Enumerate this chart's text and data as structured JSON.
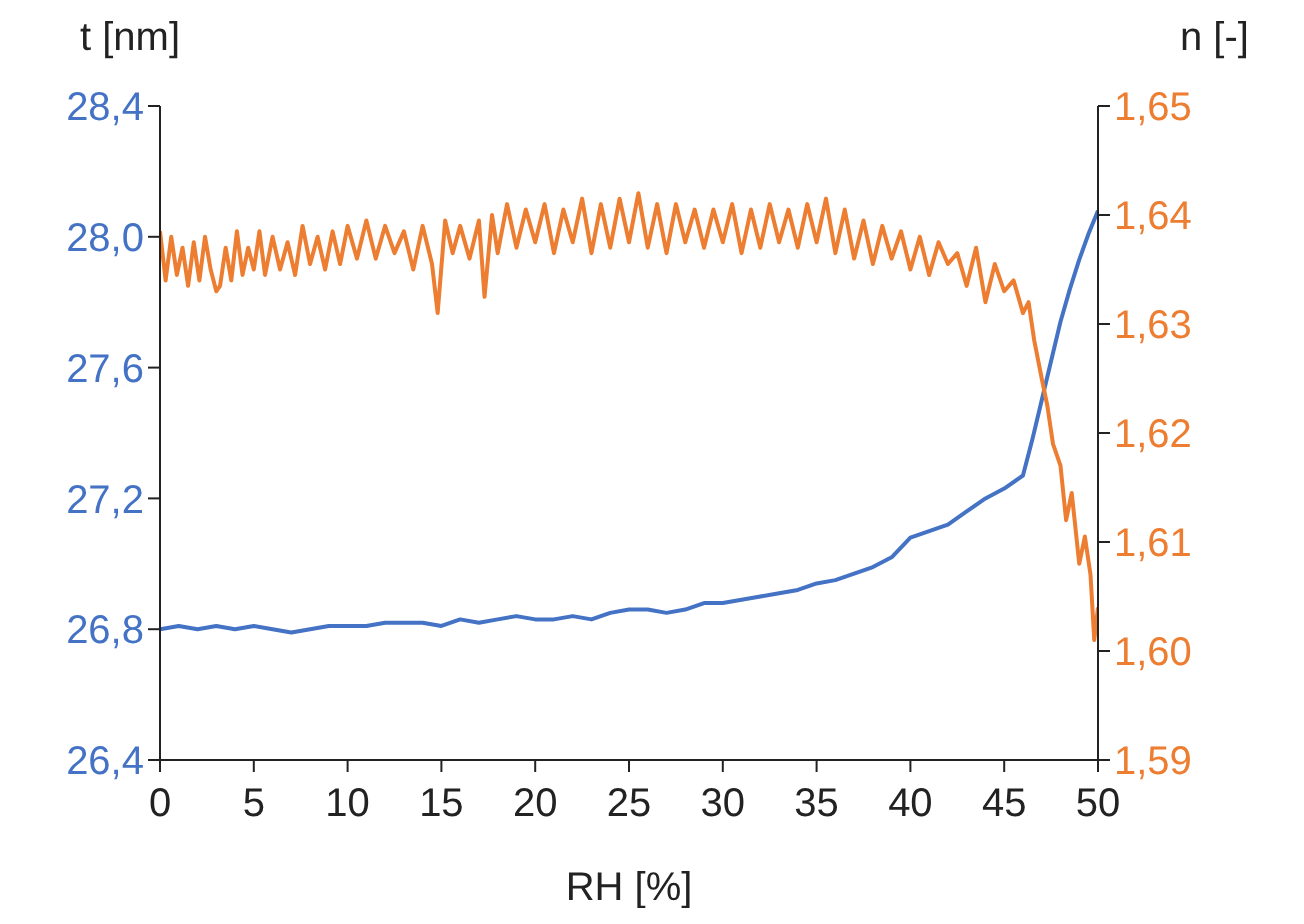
{
  "chart_data": {
    "type": "line",
    "xlabel": "RH [%]",
    "ylabel": "t [nm]",
    "y2label": "n [-]",
    "xlim": [
      0,
      50
    ],
    "xticks": [
      0,
      5,
      10,
      15,
      20,
      25,
      30,
      35,
      40,
      45,
      50
    ],
    "ylim": [
      26.4,
      28.4
    ],
    "yticks": [
      {
        "value": 26.4,
        "label": "26,4"
      },
      {
        "value": 26.8,
        "label": "26,8"
      },
      {
        "value": 27.2,
        "label": "27,2"
      },
      {
        "value": 27.6,
        "label": "27,6"
      },
      {
        "value": 28.0,
        "label": "28,0"
      },
      {
        "value": 28.4,
        "label": "28,4"
      }
    ],
    "y2lim": [
      1.59,
      1.65
    ],
    "y2ticks": [
      {
        "value": 1.59,
        "label": "1,59"
      },
      {
        "value": 1.6,
        "label": "1,60"
      },
      {
        "value": 1.61,
        "label": "1,61"
      },
      {
        "value": 1.62,
        "label": "1,62"
      },
      {
        "value": 1.63,
        "label": "1,63"
      },
      {
        "value": 1.64,
        "label": "1,64"
      },
      {
        "value": 1.65,
        "label": "1,65"
      }
    ],
    "marker": "none",
    "line_style": "solid",
    "series": [
      {
        "color": "#4472c4",
        "x": [
          0,
          1,
          2,
          3,
          4,
          5,
          6,
          7,
          8,
          9,
          10,
          11,
          12,
          13,
          14,
          15,
          16,
          17,
          18,
          19,
          20,
          21,
          22,
          23,
          24,
          25,
          26,
          27,
          28,
          29,
          30,
          31,
          32,
          33,
          34,
          35,
          36,
          37,
          38,
          39,
          40,
          41,
          42,
          43,
          44,
          45,
          46,
          46.5,
          47,
          47.5,
          48,
          48.5,
          49,
          49.5,
          50
        ],
        "values": [
          26.8,
          26.81,
          26.8,
          26.81,
          26.8,
          26.81,
          26.8,
          26.79,
          26.8,
          26.81,
          26.81,
          26.81,
          26.82,
          26.82,
          26.82,
          26.81,
          26.83,
          26.82,
          26.83,
          26.84,
          26.83,
          26.83,
          26.84,
          26.83,
          26.85,
          26.86,
          26.86,
          26.85,
          26.86,
          26.88,
          26.88,
          26.89,
          26.9,
          26.91,
          26.92,
          26.94,
          26.95,
          26.97,
          26.99,
          27.02,
          27.08,
          27.1,
          27.12,
          27.16,
          27.2,
          27.23,
          27.27,
          27.38,
          27.5,
          27.62,
          27.74,
          27.84,
          27.93,
          28.01,
          28.08
        ]
      },
      {
        "color": "#ed7d31",
        "axis": "y2",
        "x": [
          0,
          0.3,
          0.6,
          0.9,
          1.2,
          1.5,
          1.8,
          2.1,
          2.4,
          2.7,
          3,
          3.2,
          3.5,
          3.8,
          4.1,
          4.4,
          4.7,
          5,
          5.3,
          5.6,
          6,
          6.4,
          6.8,
          7.2,
          7.6,
          8,
          8.4,
          8.8,
          9.2,
          9.6,
          10,
          10.5,
          11,
          11.5,
          12,
          12.5,
          13,
          13.5,
          14,
          14.5,
          14.8,
          15.2,
          15.6,
          16,
          16.5,
          17,
          17.3,
          17.7,
          18,
          18.5,
          19,
          19.5,
          20,
          20.5,
          21,
          21.5,
          22,
          22.5,
          23,
          23.5,
          24,
          24.5,
          25,
          25.5,
          26,
          26.5,
          27,
          27.5,
          28,
          28.5,
          29,
          29.5,
          30,
          30.5,
          31,
          31.5,
          32,
          32.5,
          33,
          33.5,
          34,
          34.5,
          35,
          35.5,
          36,
          36.5,
          37,
          37.5,
          38,
          38.5,
          39,
          39.5,
          40,
          40.5,
          41,
          41.5,
          42,
          42.5,
          43,
          43.5,
          44,
          44.5,
          45,
          45.5,
          46,
          46.3,
          46.6,
          47,
          47.3,
          47.6,
          48,
          48.3,
          48.6,
          49,
          49.3,
          49.6,
          49.8,
          50
        ],
        "values": [
          1.6385,
          1.634,
          1.638,
          1.6345,
          1.637,
          1.6335,
          1.6375,
          1.634,
          1.638,
          1.635,
          1.633,
          1.6335,
          1.637,
          1.634,
          1.6385,
          1.6345,
          1.637,
          1.635,
          1.6385,
          1.6345,
          1.638,
          1.635,
          1.6375,
          1.6345,
          1.639,
          1.6355,
          1.638,
          1.635,
          1.6385,
          1.6355,
          1.639,
          1.636,
          1.6395,
          1.636,
          1.639,
          1.6365,
          1.6385,
          1.635,
          1.639,
          1.6355,
          1.631,
          1.6395,
          1.6365,
          1.639,
          1.636,
          1.6395,
          1.6325,
          1.64,
          1.6365,
          1.641,
          1.637,
          1.6405,
          1.6375,
          1.641,
          1.6365,
          1.6405,
          1.6375,
          1.6415,
          1.6365,
          1.641,
          1.637,
          1.6415,
          1.6375,
          1.642,
          1.637,
          1.641,
          1.6365,
          1.641,
          1.6375,
          1.6405,
          1.637,
          1.6405,
          1.6375,
          1.641,
          1.6365,
          1.6405,
          1.637,
          1.641,
          1.6375,
          1.6405,
          1.637,
          1.641,
          1.6375,
          1.6415,
          1.6365,
          1.6405,
          1.636,
          1.6395,
          1.6355,
          1.639,
          1.636,
          1.6385,
          1.635,
          1.638,
          1.6345,
          1.6375,
          1.6355,
          1.6365,
          1.6335,
          1.637,
          1.632,
          1.6355,
          1.633,
          1.634,
          1.631,
          1.632,
          1.6285,
          1.625,
          1.6225,
          1.619,
          1.617,
          1.612,
          1.6145,
          1.608,
          1.6105,
          1.607,
          1.601,
          1.604
        ]
      }
    ]
  }
}
